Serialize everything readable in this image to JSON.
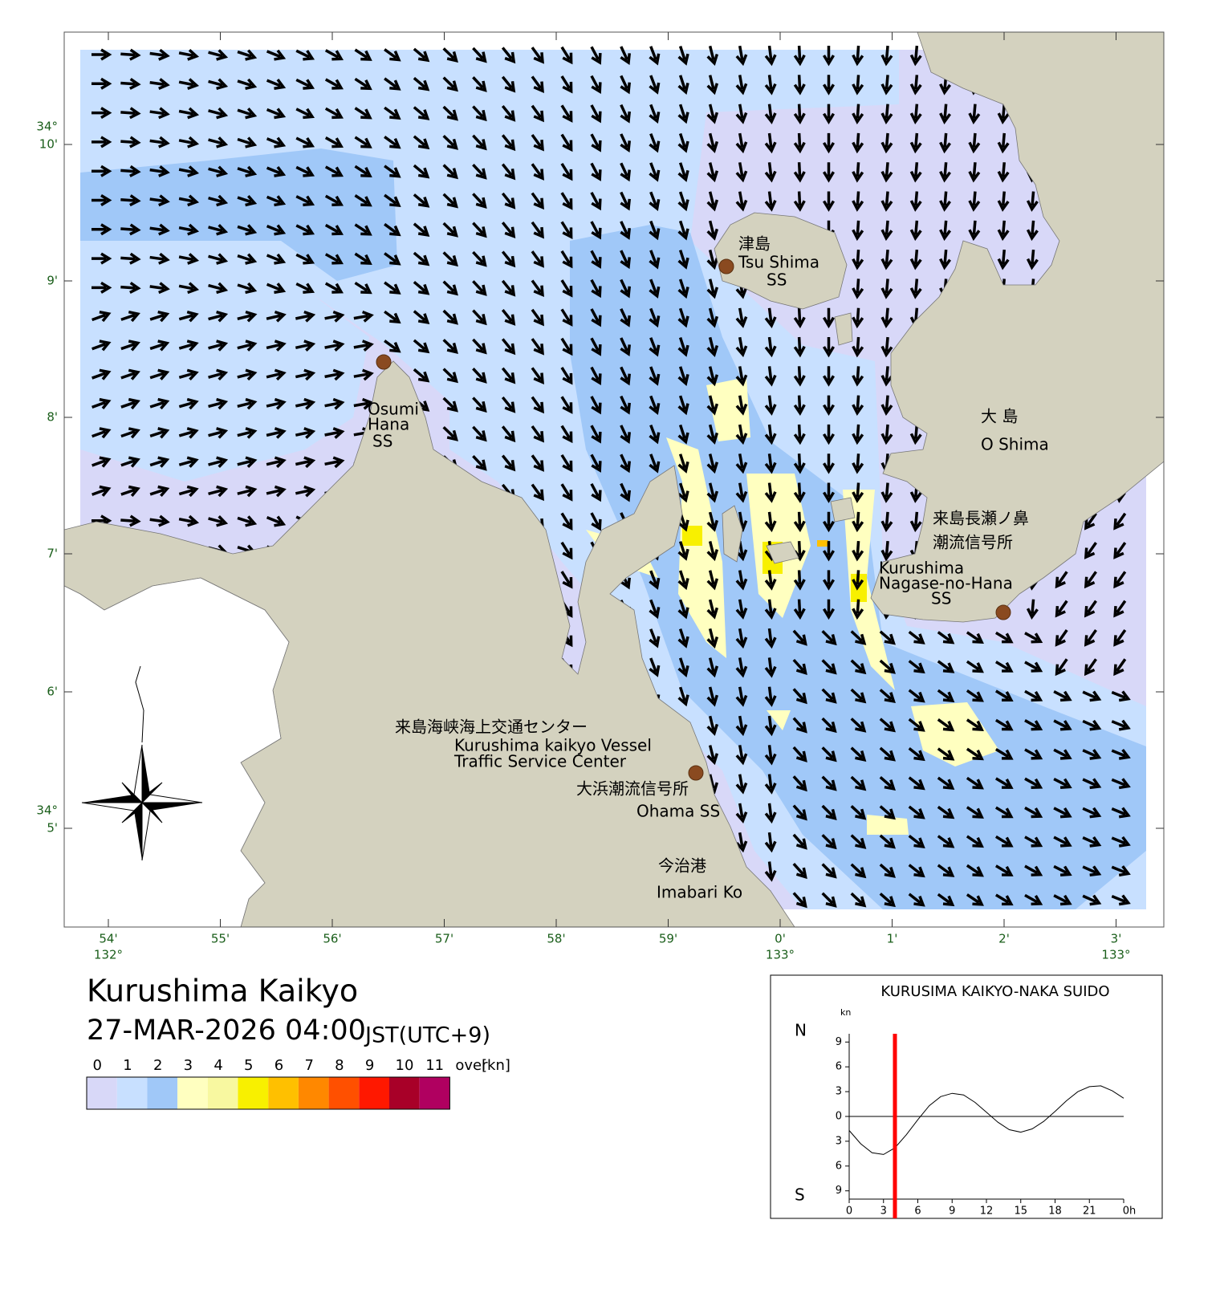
{
  "map": {
    "lat_labels": [
      {
        "deg": "34°",
        "min": "10'"
      },
      {
        "min": "9'"
      },
      {
        "min": "8'"
      },
      {
        "min": "7'"
      },
      {
        "min": "6'"
      },
      {
        "deg": "34°",
        "min": "5'"
      }
    ],
    "lon_labels": [
      {
        "min": "54'",
        "deg": "132°"
      },
      {
        "min": "55'"
      },
      {
        "min": "56'"
      },
      {
        "min": "57'"
      },
      {
        "min": "58'"
      },
      {
        "min": "59'"
      },
      {
        "min": "0'",
        "deg": "133°"
      },
      {
        "min": "1'"
      },
      {
        "min": "2'"
      },
      {
        "min": "3'",
        "deg": "133°"
      }
    ],
    "places": [
      "津島",
      "Tsu Shima",
      "SS",
      "Osumi",
      "Hana",
      "SS",
      "大 島",
      "O Shima",
      "来島長瀬ノ鼻",
      "潮流信号所",
      "Kurushima",
      "Nagase-no-Hana",
      "SS",
      "来島海峡海上交通センター",
      "Kurushima kaikyo Vessel",
      "Traffic Service Center",
      "大浜潮流信号所",
      "Ohama SS",
      "今治港",
      "Imabari Ko"
    ]
  },
  "title": "Kurushima Kaikyo",
  "datetime": "27-MAR-2026 04:00",
  "timezone": "JST(UTC+9)",
  "legend": {
    "bounds": [
      0,
      1,
      2,
      3,
      4,
      5,
      6,
      7,
      8,
      9,
      10,
      11
    ],
    "over_label": "over",
    "unit": "[kn]",
    "colors": [
      "#d8d8f8",
      "#c8e0ff",
      "#a0c8f8",
      "#ffffc0",
      "#f8f8a0",
      "#f8f000",
      "#ffc000",
      "#ff8800",
      "#ff5000",
      "#ff1800",
      "#a80028",
      "#b00060"
    ]
  },
  "inset": {
    "type": "line",
    "title": "KURUSIMA KAIKYO-NAKA SUIDO",
    "unit": "kn",
    "north_label": "N",
    "south_label": "S",
    "x": [
      0,
      1,
      2,
      3,
      4,
      5,
      6,
      7,
      8,
      9,
      10,
      11,
      12,
      13,
      14,
      15,
      16,
      17,
      18,
      19,
      20,
      21,
      22,
      23,
      24
    ],
    "values": [
      -1.7,
      -3.3,
      -4.4,
      -4.6,
      -3.8,
      -2.2,
      -0.4,
      1.3,
      2.4,
      2.8,
      2.6,
      1.7,
      0.5,
      -0.7,
      -1.6,
      -1.9,
      -1.5,
      -0.6,
      0.6,
      1.9,
      3.0,
      3.6,
      3.7,
      3.1,
      2.2
    ],
    "xlim": [
      0,
      24
    ],
    "ylim": [
      -10,
      10
    ],
    "xticks": [
      0,
      3,
      6,
      9,
      12,
      15,
      18,
      21,
      {
        "value": 24,
        "label": "0h"
      }
    ],
    "yticks": [
      9,
      6,
      3,
      0,
      {
        "value": -3,
        "label": "3"
      },
      {
        "value": -6,
        "label": "6"
      },
      {
        "value": -9,
        "label": "9"
      }
    ],
    "current_time": 4
  }
}
